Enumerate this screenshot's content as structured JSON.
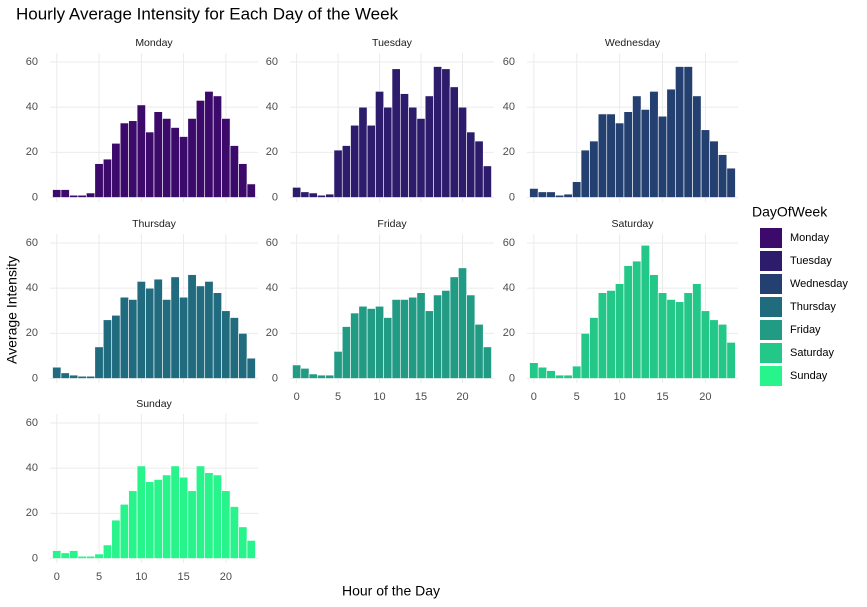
{
  "chart_data": {
    "type": "bar",
    "title": "Hourly Average Intensity for Each Day of the Week",
    "x_label": "Hour of the Day",
    "y_label": "Average Intensity",
    "legend_title": "DayOfWeek",
    "x": [
      0,
      1,
      2,
      3,
      4,
      5,
      6,
      7,
      8,
      9,
      10,
      11,
      12,
      13,
      14,
      15,
      16,
      17,
      18,
      19,
      20,
      21,
      22,
      23
    ],
    "xlim": [
      -0.8,
      23.8
    ],
    "xticks": [
      0,
      5,
      10,
      15,
      20
    ],
    "ylim": [
      -2,
      64
    ],
    "yticks": [
      0,
      20,
      40,
      60
    ],
    "grid": true,
    "series": [
      {
        "name": "Monday",
        "color": "#3b0a6a",
        "values": [
          3.5,
          3.5,
          1,
          1,
          2,
          15,
          17,
          24,
          33,
          34,
          41,
          29,
          38,
          35,
          31,
          27,
          35,
          43,
          47,
          45,
          35,
          23,
          15,
          6
        ]
      },
      {
        "name": "Tuesday",
        "color": "#2d1b6c",
        "values": [
          4.5,
          2.5,
          2,
          1,
          1.5,
          21,
          23,
          32,
          40,
          32,
          47,
          40,
          57,
          46,
          40,
          35,
          45,
          58,
          57,
          49,
          40,
          29,
          25,
          14
        ]
      },
      {
        "name": "Wednesday",
        "color": "#244070",
        "values": [
          4,
          2.5,
          2.5,
          1,
          1.5,
          7,
          21,
          25,
          37,
          37,
          33,
          38,
          45,
          39,
          47,
          36,
          48,
          58,
          58,
          45,
          30,
          25,
          19,
          13
        ]
      },
      {
        "name": "Thursday",
        "color": "#216b7f",
        "values": [
          5,
          2.5,
          1.5,
          1,
          1,
          14,
          26,
          28,
          36,
          35,
          43,
          40,
          44,
          35,
          45,
          36,
          46,
          41,
          43,
          38,
          30,
          27,
          20,
          9
        ]
      },
      {
        "name": "Friday",
        "color": "#229b85",
        "values": [
          6,
          4.5,
          2,
          1.5,
          1.5,
          12,
          23,
          29,
          32,
          31,
          32,
          27,
          35,
          35,
          36,
          38,
          30,
          37,
          39,
          45,
          49,
          37,
          24,
          14
        ]
      },
      {
        "name": "Saturday",
        "color": "#23c889",
        "values": [
          7,
          5,
          3.5,
          1.5,
          1.5,
          5.5,
          20,
          27,
          38,
          39,
          42,
          50,
          52,
          59,
          46,
          38,
          35,
          34,
          38,
          42,
          30,
          26,
          24,
          16
        ]
      },
      {
        "name": "Sunday",
        "color": "#28f48c",
        "values": [
          3.5,
          2.5,
          3.5,
          1,
          1,
          2,
          6,
          17,
          24,
          30,
          41,
          34,
          35,
          37,
          41,
          36,
          30,
          41,
          38,
          37,
          30,
          23,
          14,
          8
        ]
      }
    ]
  }
}
